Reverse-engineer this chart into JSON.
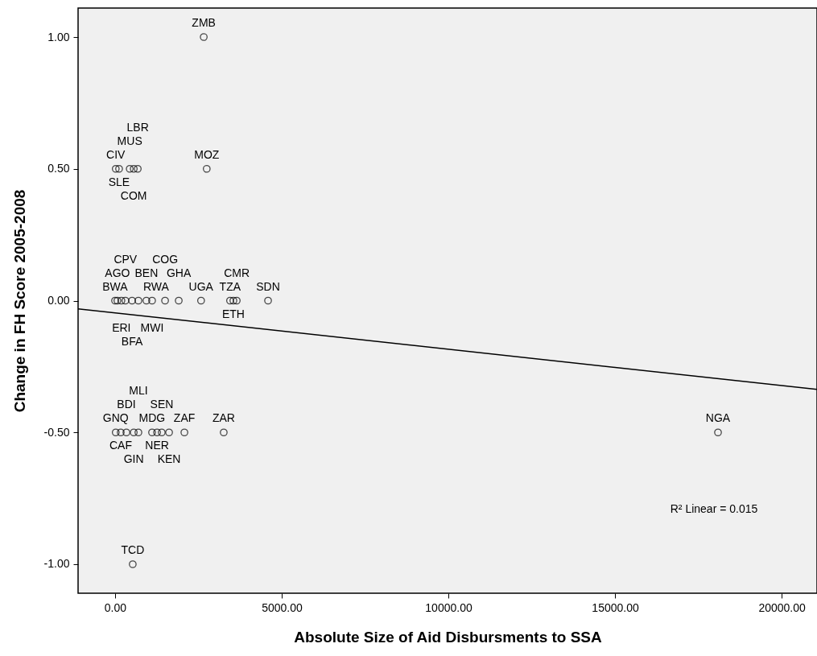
{
  "chart_data": {
    "type": "scatter",
    "xlabel": "Absolute Size of Aid Disbursments to SSA",
    "ylabel": "Change in FH Score 2005-2008",
    "xlim": [
      -1110,
      21060
    ],
    "ylim": [
      -1.11,
      1.11
    ],
    "xticks": [
      {
        "value": 0,
        "label": "0.00"
      },
      {
        "value": 5000,
        "label": "5000.00"
      },
      {
        "value": 10000,
        "label": "10000.00"
      },
      {
        "value": 15000,
        "label": "15000.00"
      },
      {
        "value": 20000,
        "label": "20000.00"
      }
    ],
    "yticks": [
      {
        "value": -1,
        "label": "-1.00"
      },
      {
        "value": -0.5,
        "label": "-0.50"
      },
      {
        "value": 0,
        "label": "0.00"
      },
      {
        "value": 0.5,
        "label": "0.50"
      },
      {
        "value": 1,
        "label": "1.00"
      }
    ],
    "grid": false,
    "marker": "circle",
    "series": [
      {
        "color": "#000000",
        "x": [
          2660,
          2750,
          20,
          120,
          440,
          560,
          680,
          0,
          70,
          190,
          310,
          510,
          700,
          940,
          1110,
          1500,
          1910,
          2580,
          3450,
          3550,
          3650,
          4590,
          20,
          170,
          340,
          560,
          700,
          1110,
          1260,
          1400,
          1620,
          2080,
          3260,
          18090,
          530
        ],
        "values": [
          1,
          0.5,
          0.5,
          0.5,
          0.5,
          0.5,
          0.5,
          0,
          0,
          0,
          0,
          0,
          0,
          0,
          0,
          0,
          0,
          0,
          0,
          0,
          0,
          0,
          -0.5,
          -0.5,
          -0.5,
          -0.5,
          -0.5,
          -0.5,
          -0.5,
          -0.5,
          -0.5,
          -0.5,
          -0.5,
          -0.5,
          -1
        ],
        "value_labels": [
          "ZMB",
          "MOZ",
          "CIV",
          "SLE",
          "MUS",
          "COM",
          "LBR",
          "BWA",
          "AGO",
          "ERI",
          "CPV",
          "BFA",
          "RWA",
          "BEN",
          "MWI",
          "COG",
          "GHA",
          "UGA",
          "TZA",
          "ETH",
          "CMR",
          "SDN",
          "GNQ",
          "CAF",
          "BDI",
          "GIN",
          "MLI",
          "MDG",
          "NER",
          "SEN",
          "KEN",
          "ZAF",
          "ZAR",
          "NGA",
          "TCD"
        ]
      },
      {
        "type": "line",
        "marker": "none",
        "color": "#000000",
        "x": [
          -1110,
          21060
        ],
        "values": [
          -0.031,
          -0.337
        ]
      }
    ],
    "annotations": [
      "R² Linear = 0.015"
    ]
  }
}
